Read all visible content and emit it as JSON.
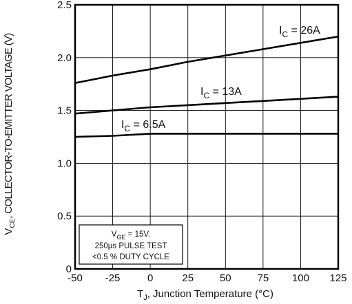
{
  "chart_data": {
    "type": "line",
    "xlabel_main": "T",
    "xlabel_sub": "J",
    "xlabel_rest": ", Junction Temperature (°C)",
    "ylabel_main": "V",
    "ylabel_sub": "CE",
    "ylabel_rest": ", COLLECTOR-TO-EMITTER VOLTAGE (V)",
    "xlim": [
      -50,
      125
    ],
    "ylim": [
      0,
      2.5
    ],
    "xticks": [
      -50,
      -25,
      0,
      25,
      50,
      75,
      100,
      125
    ],
    "xtick_labels": [
      "-50",
      "-25",
      "0",
      "25",
      "50",
      "75",
      "100",
      "125"
    ],
    "yticks": [
      0,
      0.5,
      1.0,
      1.5,
      2.0,
      2.5
    ],
    "ytick_labels": [
      "0",
      "0.5",
      "1.0",
      "1.5",
      "2.0",
      "2.5"
    ],
    "grid": true,
    "series": [
      {
        "label_main": "I",
        "label_sub": "C",
        "label_rest": " = 26A",
        "x": [
          -50,
          -25,
          0,
          25,
          50,
          75,
          100,
          125
        ],
        "y": [
          1.76,
          1.83,
          1.89,
          1.96,
          2.02,
          2.08,
          2.14,
          2.2
        ]
      },
      {
        "label_main": "I",
        "label_sub": "C",
        "label_rest": " = 13A",
        "x": [
          -50,
          -25,
          0,
          25,
          50,
          75,
          100,
          125
        ],
        "y": [
          1.47,
          1.5,
          1.53,
          1.55,
          1.57,
          1.59,
          1.61,
          1.63
        ]
      },
      {
        "label_main": "I",
        "label_sub": "C",
        "label_rest": " = 6.5A",
        "x": [
          -50,
          -25,
          0,
          25,
          50,
          75,
          100,
          125
        ],
        "y": [
          1.25,
          1.26,
          1.28,
          1.28,
          1.28,
          1.28,
          1.28,
          1.28
        ]
      }
    ],
    "note": {
      "line1_main": "V",
      "line1_sub": "GE",
      "line1_rest": " = 15V.",
      "line2": "250µs PULSE TEST",
      "line3": "<0.5 % DUTY CYCLE"
    }
  }
}
